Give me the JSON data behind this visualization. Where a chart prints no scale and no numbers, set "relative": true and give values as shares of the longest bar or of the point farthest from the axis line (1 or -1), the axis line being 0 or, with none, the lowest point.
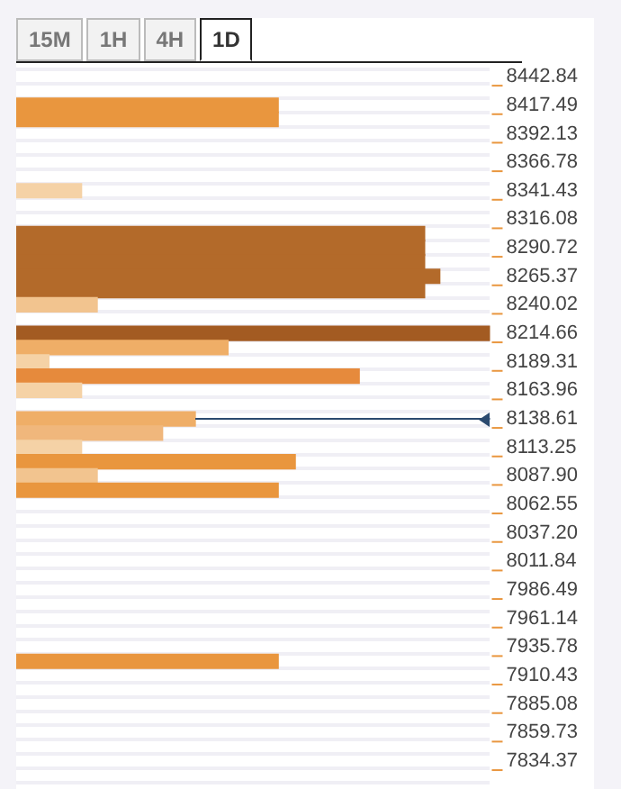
{
  "chart_data": {
    "type": "bar",
    "orientation": "horizontal",
    "relative": true,
    "grid": "y",
    "legend": false,
    "tick_labels": "y",
    "annotations": [
      "15M",
      "1H",
      "4H",
      "1D"
    ],
    "categories": [
      "8442.84",
      null,
      "8417.49",
      null,
      "8392.13",
      null,
      "8366.78",
      null,
      "8341.43",
      null,
      "8316.08",
      null,
      "8290.72",
      null,
      "8265.37",
      null,
      "8240.02",
      null,
      "8214.66",
      null,
      "8189.31",
      null,
      "8163.96",
      null,
      "8138.61",
      null,
      "8113.25",
      null,
      "8087.90",
      null,
      "8062.55",
      null,
      "8037.20",
      null,
      "8011.84",
      null,
      "7986.49",
      null,
      "7961.14",
      null,
      "7935.78",
      null,
      "7910.43",
      null,
      "7885.08",
      null,
      "7859.73",
      null,
      "7834.37",
      null
    ],
    "values": [
      null,
      null,
      0.553,
      0.553,
      null,
      null,
      null,
      null,
      0.138,
      null,
      null,
      0.862,
      0.862,
      0.862,
      0.894,
      0.862,
      0.171,
      null,
      1,
      0.447,
      0.069,
      0.724,
      0.138,
      null,
      0.378,
      0.309,
      0.138,
      0.589,
      0.171,
      0.553,
      null,
      null,
      null,
      null,
      null,
      null,
      null,
      null,
      null,
      null,
      null,
      0.553,
      null,
      null,
      null,
      null,
      null,
      null,
      null,
      null
    ],
    "colors": [
      null,
      null,
      "#e9963e",
      "#e9963e",
      null,
      null,
      null,
      null,
      "#f5d2a6",
      null,
      null,
      "#b36a2a",
      "#b36a2a",
      "#b36a2a",
      "#b36a2a",
      "#b36a2a",
      "#f2c48f",
      null,
      "#a35b22",
      "#efae67",
      "#f5d2a6",
      "#e68a3c",
      "#f5d2a6",
      null,
      "#efae67",
      "#f0b77c",
      "#f5d2a6",
      "#e9963e",
      "#f2c48f",
      "#e9963e",
      null,
      null,
      null,
      null,
      null,
      null,
      null,
      null,
      null,
      null,
      null,
      "#e9963e",
      null,
      null,
      null,
      null,
      null,
      null,
      null,
      null
    ],
    "ref_lines": [
      {
        "axis": "y",
        "value": "8138.61",
        "color": "#2b4a6f"
      }
    ]
  }
}
